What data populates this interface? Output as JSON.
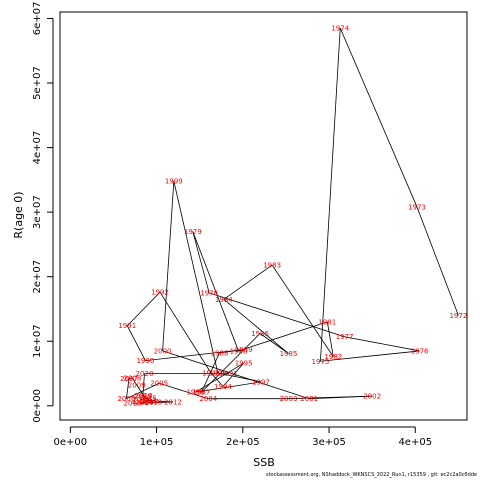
{
  "chart_data": {
    "type": "line",
    "title": "",
    "xlabel": "SSB",
    "ylabel": "R(age 0)",
    "xlim": [
      -12000,
      460000
    ],
    "ylim": [
      -2200000,
      61000000
    ],
    "x_ticks": [
      0,
      100000,
      200000,
      300000,
      400000
    ],
    "x_tick_labels": [
      "0e+00",
      "1e+05",
      "2e+05",
      "3e+05",
      "4e+05"
    ],
    "y_ticks": [
      0,
      10000000,
      20000000,
      30000000,
      40000000,
      50000000,
      60000000
    ],
    "y_tick_labels": [
      "0e+00",
      "1e+07",
      "2e+07",
      "3e+07",
      "4e+07",
      "5e+07",
      "6e+07"
    ],
    "grid": false,
    "line_color": "#000000",
    "label_color": "#ff0000",
    "points": [
      {
        "year": "1972",
        "x": 450000,
        "y": 14000000
      },
      {
        "year": "1973",
        "x": 402000,
        "y": 30800000
      },
      {
        "year": "1974",
        "x": 313000,
        "y": 58500000
      },
      {
        "year": "1975",
        "x": 290000,
        "y": 6900000
      },
      {
        "year": "1976",
        "x": 405000,
        "y": 8500000
      },
      {
        "year": "1977",
        "x": 318000,
        "y": 10700000
      },
      {
        "year": "1978",
        "x": 161000,
        "y": 17500000
      },
      {
        "year": "1979",
        "x": 142000,
        "y": 27000000
      },
      {
        "year": "1980",
        "x": 195000,
        "y": 8500000
      },
      {
        "year": "1981",
        "x": 298000,
        "y": 13000000
      },
      {
        "year": "1982",
        "x": 305000,
        "y": 7600000
      },
      {
        "year": "1983",
        "x": 234000,
        "y": 21800000
      },
      {
        "year": "1984",
        "x": 178000,
        "y": 16500000
      },
      {
        "year": "1985",
        "x": 253000,
        "y": 8100000
      },
      {
        "year": "1986",
        "x": 220000,
        "y": 11200000
      },
      {
        "year": "1987",
        "x": 152000,
        "y": 2100000
      },
      {
        "year": "1988",
        "x": 173000,
        "y": 8200000
      },
      {
        "year": "1989",
        "x": 201000,
        "y": 8700000
      },
      {
        "year": "1990",
        "x": 87000,
        "y": 7000000
      },
      {
        "year": "1991",
        "x": 66000,
        "y": 12400000
      },
      {
        "year": "1992",
        "x": 104000,
        "y": 17600000
      },
      {
        "year": "1993",
        "x": 163000,
        "y": 5100000
      },
      {
        "year": "1994",
        "x": 177000,
        "y": 3000000
      },
      {
        "year": "1995",
        "x": 201000,
        "y": 6600000
      },
      {
        "year": "1996",
        "x": 145000,
        "y": 2100000
      },
      {
        "year": "1997",
        "x": 221000,
        "y": 3700000
      },
      {
        "year": "1998",
        "x": 171000,
        "y": 5100000
      },
      {
        "year": "1999",
        "x": 120000,
        "y": 34800000
      },
      {
        "year": "2000",
        "x": 107000,
        "y": 8500000
      },
      {
        "year": "2001",
        "x": 277000,
        "y": 1100000
      },
      {
        "year": "2002",
        "x": 350000,
        "y": 1500000
      },
      {
        "year": "2003",
        "x": 253000,
        "y": 1100000
      },
      {
        "year": "2004",
        "x": 160000,
        "y": 1100000
      },
      {
        "year": "2005",
        "x": 103000,
        "y": 3500000
      },
      {
        "year": "2006",
        "x": 65000,
        "y": 1100000
      },
      {
        "year": "2007",
        "x": 68000,
        "y": 4200000
      },
      {
        "year": "2008",
        "x": 72000,
        "y": 4300000
      },
      {
        "year": "2009",
        "x": 77000,
        "y": 3200000
      },
      {
        "year": "2010",
        "x": 85000,
        "y": 1600000
      },
      {
        "year": "2011",
        "x": 90000,
        "y": 800000
      },
      {
        "year": "2012",
        "x": 119000,
        "y": 600000
      },
      {
        "year": "2013",
        "x": 72000,
        "y": 400000
      },
      {
        "year": "2014",
        "x": 86000,
        "y": 500000
      },
      {
        "year": "2015",
        "x": 90000,
        "y": 1200000
      },
      {
        "year": "2016",
        "x": 82000,
        "y": 1000000
      },
      {
        "year": "2017",
        "x": 92000,
        "y": 700000
      },
      {
        "year": "2018",
        "x": 96000,
        "y": 600000
      },
      {
        "year": "2019",
        "x": 84000,
        "y": 1500000
      },
      {
        "year": "2020",
        "x": 86000,
        "y": 5000000
      },
      {
        "year": "2021",
        "x": 184000,
        "y": 5000000
      }
    ]
  },
  "footer_text": "stockassessment.org, NShaddock_WKNSCS_2022_Run1, r15359 , git: ec2c2a0c6dde"
}
